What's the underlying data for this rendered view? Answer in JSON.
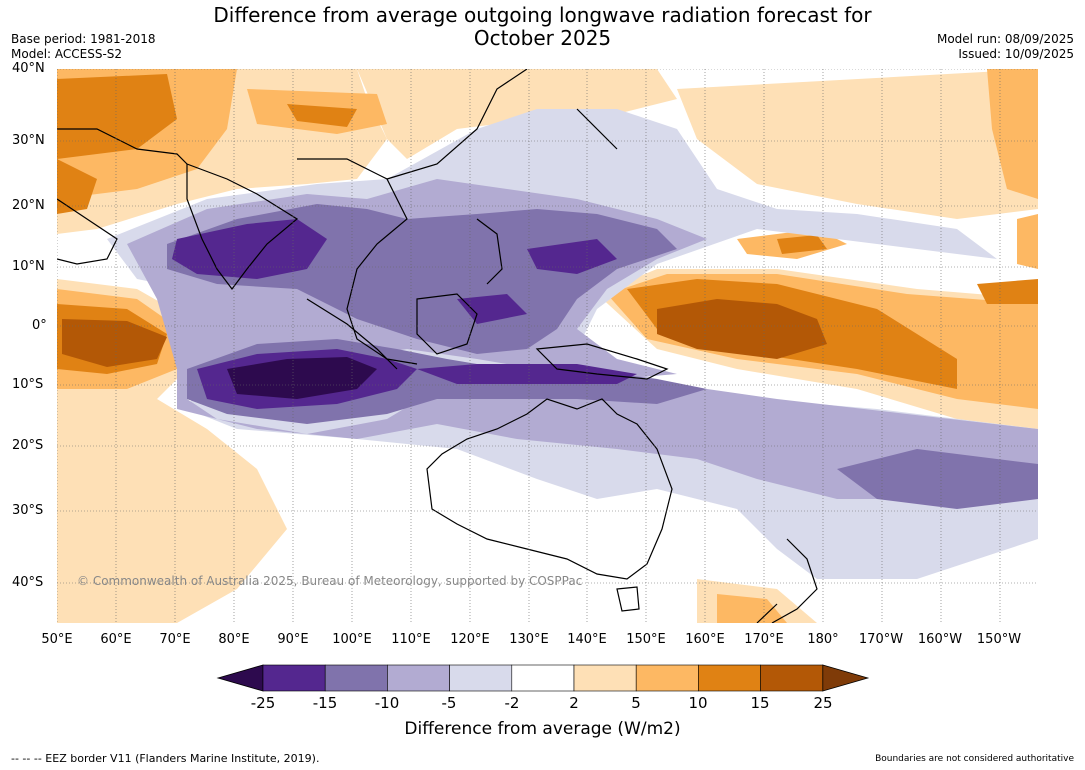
{
  "title": {
    "line1": "Difference from average outgoing longwave radiation forecast for",
    "line2": "October 2025"
  },
  "meta_left": {
    "base_period": "Base period: 1981-2018",
    "model": "Model: ACCESS-S2"
  },
  "meta_right": {
    "model_run": "Model run: 08/09/2025",
    "issued": "Issued: 10/09/2025"
  },
  "lat_labels": [
    "40°N",
    "30°N",
    "20°N",
    "10°N",
    "0°",
    "10°S",
    "20°S",
    "30°S",
    "40°S"
  ],
  "lon_labels": [
    "50°E",
    "60°E",
    "70°E",
    "80°E",
    "90°E",
    "100°E",
    "110°E",
    "120°E",
    "130°E",
    "140°E",
    "150°E",
    "160°E",
    "170°E",
    "180°",
    "170°W",
    "160°W",
    "150°W"
  ],
  "copyright": "© Commonwealth of Australia 2025, Bureau of Meteorology, supported by COSPPac",
  "colorbar": {
    "ticks": [
      "-25",
      "-15",
      "-10",
      "-5",
      "-2",
      "2",
      "5",
      "10",
      "15",
      "25"
    ],
    "colors": [
      "#2d0a4e",
      "#54278f",
      "#8073ac",
      "#b2abd2",
      "#d8daeb",
      "#ffffff",
      "#fee0b6",
      "#fdb863",
      "#e08214",
      "#b35806",
      "#7f3b08"
    ],
    "label": "Difference from average (W/m2)"
  },
  "footer_left": "--  --  -- EEZ border V11 (Flanders Marine Institute, 2019).",
  "footer_right": "Boundaries are not considered authoritative"
}
